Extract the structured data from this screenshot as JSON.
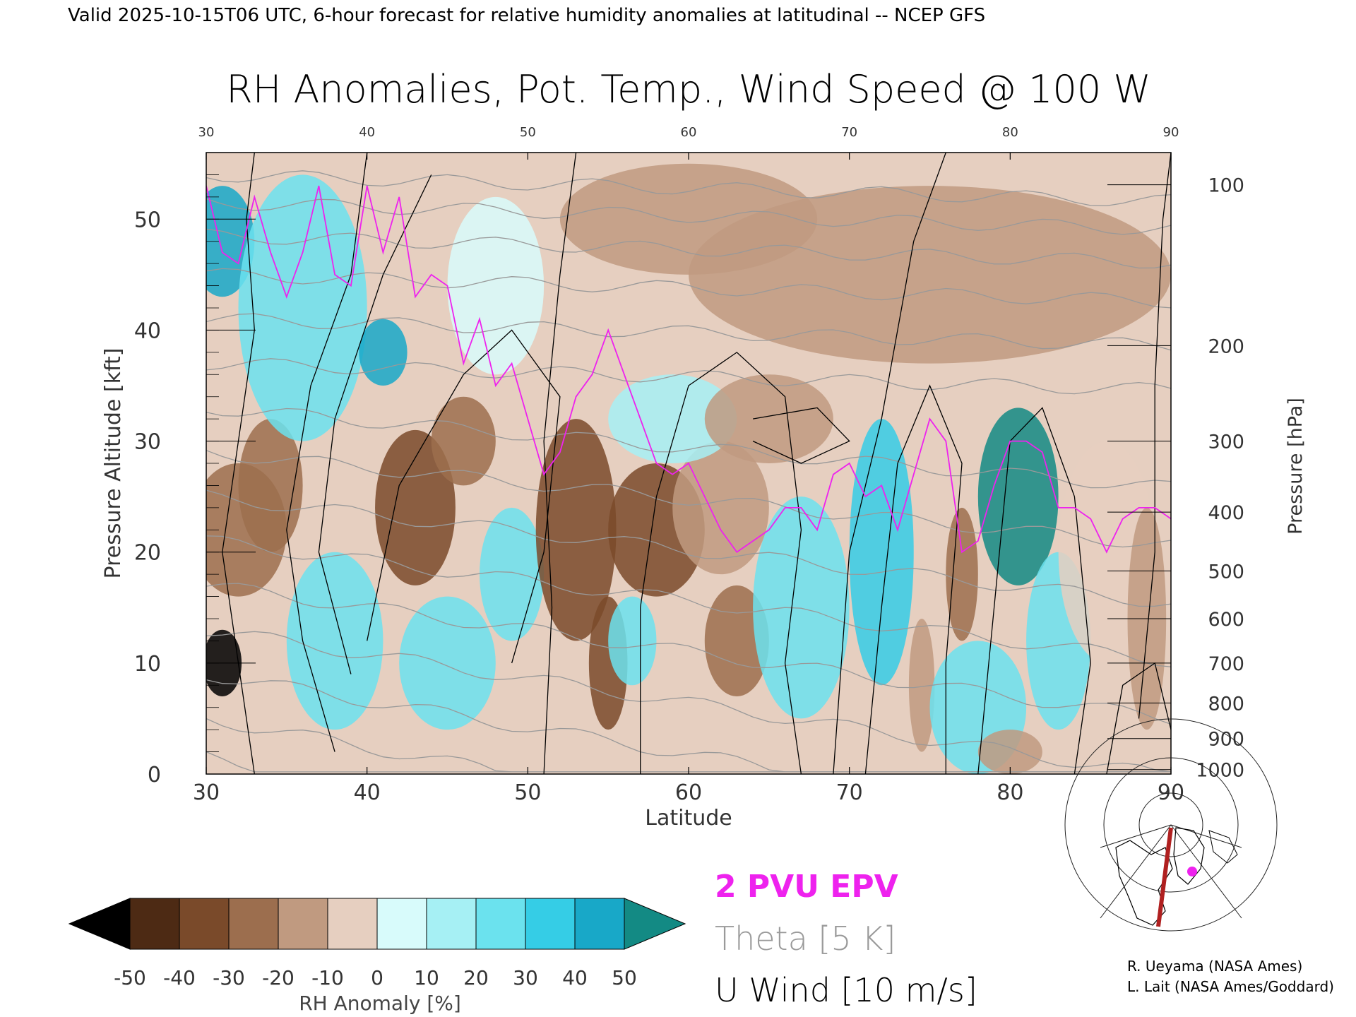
{
  "header": {
    "valid_line": "Valid 2025-10-15T06 UTC, 6-hour forecast for relative humidity anomalies at latitudinal -- NCEP GFS",
    "title": "RH Anomalies, Pot. Temp., Wind Speed @ 100 W"
  },
  "chart_data": {
    "type": "heatmap",
    "title": "RH Anomalies, Pot. Temp., Wind Speed @ 100 W",
    "xlabel": "Latitude",
    "ylabel": "Pressure Altitude [kft]",
    "y2label": "Pressure [hPa]",
    "xlim": [
      30,
      90
    ],
    "ylim": [
      0,
      56
    ],
    "x_ticks": [
      "30",
      "40",
      "50",
      "60",
      "70",
      "80",
      "90"
    ],
    "y_ticks": [
      "0",
      "10",
      "20",
      "30",
      "40",
      "50"
    ],
    "y2_ticks": [
      "100",
      "200",
      "300",
      "400",
      "500",
      "600",
      "700",
      "800",
      "900",
      "1000"
    ],
    "y2_tick_kft": [
      53.1,
      38.6,
      30.0,
      23.6,
      18.3,
      14.0,
      10.0,
      6.4,
      3.2,
      0.4
    ],
    "rh_blobs": [
      {
        "lat": 31,
        "kft": 10,
        "v": -55,
        "rx": 1.2,
        "ry": 3
      },
      {
        "lat": 32,
        "kft": 22,
        "v": -25,
        "rx": 3,
        "ry": 6
      },
      {
        "lat": 34,
        "kft": 26,
        "v": -30,
        "rx": 2,
        "ry": 6
      },
      {
        "lat": 31,
        "kft": 48,
        "v": 40,
        "rx": 2,
        "ry": 5
      },
      {
        "lat": 36,
        "kft": 42,
        "v": 20,
        "rx": 4,
        "ry": 12
      },
      {
        "lat": 38,
        "kft": 12,
        "v": 20,
        "rx": 3,
        "ry": 8
      },
      {
        "lat": 41,
        "kft": 38,
        "v": 45,
        "rx": 1.5,
        "ry": 3
      },
      {
        "lat": 43,
        "kft": 24,
        "v": -35,
        "rx": 2.5,
        "ry": 7
      },
      {
        "lat": 46,
        "kft": 30,
        "v": -25,
        "rx": 2,
        "ry": 4
      },
      {
        "lat": 45,
        "kft": 10,
        "v": 25,
        "rx": 3,
        "ry": 6
      },
      {
        "lat": 49,
        "kft": 18,
        "v": 20,
        "rx": 2,
        "ry": 6
      },
      {
        "lat": 48,
        "kft": 44,
        "v": 5,
        "rx": 3,
        "ry": 8
      },
      {
        "lat": 53,
        "kft": 22,
        "v": -35,
        "rx": 2.5,
        "ry": 10
      },
      {
        "lat": 55,
        "kft": 10,
        "v": -40,
        "rx": 1.2,
        "ry": 6
      },
      {
        "lat": 56.5,
        "kft": 12,
        "v": 20,
        "rx": 1.5,
        "ry": 4
      },
      {
        "lat": 58,
        "kft": 22,
        "v": -35,
        "rx": 3,
        "ry": 6
      },
      {
        "lat": 63,
        "kft": 12,
        "v": -30,
        "rx": 2,
        "ry": 5
      },
      {
        "lat": 62,
        "kft": 24,
        "v": -20,
        "rx": 3,
        "ry": 6
      },
      {
        "lat": 59,
        "kft": 32,
        "v": 15,
        "rx": 4,
        "ry": 4
      },
      {
        "lat": 67,
        "kft": 15,
        "v": 25,
        "rx": 3,
        "ry": 10
      },
      {
        "lat": 65,
        "kft": 32,
        "v": -15,
        "rx": 4,
        "ry": 4
      },
      {
        "lat": 72,
        "kft": 20,
        "v": 35,
        "rx": 2,
        "ry": 12
      },
      {
        "lat": 74.5,
        "kft": 8,
        "v": -20,
        "rx": 0.8,
        "ry": 6
      },
      {
        "lat": 77,
        "kft": 18,
        "v": -25,
        "rx": 1,
        "ry": 6
      },
      {
        "lat": 80.5,
        "kft": 25,
        "v": 55,
        "rx": 2.5,
        "ry": 8
      },
      {
        "lat": 78,
        "kft": 6,
        "v": 25,
        "rx": 3,
        "ry": 6
      },
      {
        "lat": 83,
        "kft": 12,
        "v": 20,
        "rx": 2,
        "ry": 8
      },
      {
        "lat": 86,
        "kft": 20,
        "v": -5,
        "rx": 3,
        "ry": 10
      },
      {
        "lat": 88.5,
        "kft": 14,
        "v": -15,
        "rx": 1.2,
        "ry": 10
      },
      {
        "lat": 75,
        "kft": 45,
        "v": -20,
        "rx": 15,
        "ry": 8
      },
      {
        "lat": 60,
        "kft": 50,
        "v": -12,
        "rx": 8,
        "ry": 5
      },
      {
        "lat": 80,
        "kft": 2,
        "v": -15,
        "rx": 2,
        "ry": 2
      }
    ],
    "theta_levels": [
      280,
      290,
      300,
      310,
      320,
      330,
      340,
      350,
      360,
      370,
      380,
      390,
      400,
      410,
      420
    ],
    "epv_2pvu": [
      [
        30,
        53
      ],
      [
        31,
        47
      ],
      [
        32,
        46
      ],
      [
        33,
        52
      ],
      [
        34,
        47
      ],
      [
        35,
        43
      ],
      [
        36,
        47
      ],
      [
        37,
        53
      ],
      [
        38,
        45
      ],
      [
        39,
        44
      ],
      [
        40,
        53
      ],
      [
        41,
        47
      ],
      [
        42,
        52
      ],
      [
        43,
        43
      ],
      [
        44,
        45
      ],
      [
        45,
        44
      ],
      [
        46,
        37
      ],
      [
        47,
        41
      ],
      [
        48,
        35
      ],
      [
        49,
        37
      ],
      [
        50,
        32
      ],
      [
        51,
        27
      ],
      [
        52,
        29
      ],
      [
        53,
        34
      ],
      [
        54,
        36
      ],
      [
        55,
        40
      ],
      [
        56,
        36
      ],
      [
        57,
        32
      ],
      [
        58,
        28
      ],
      [
        59,
        27
      ],
      [
        60,
        28
      ],
      [
        61,
        25
      ],
      [
        62,
        22
      ],
      [
        63,
        20
      ],
      [
        64,
        21
      ],
      [
        65,
        22
      ],
      [
        66,
        24
      ],
      [
        67,
        24
      ],
      [
        68,
        22
      ],
      [
        69,
        27
      ],
      [
        70,
        28
      ],
      [
        71,
        25
      ],
      [
        72,
        26
      ],
      [
        73,
        22
      ],
      [
        74,
        27
      ],
      [
        75,
        32
      ],
      [
        76,
        30
      ],
      [
        77,
        20
      ],
      [
        78,
        21
      ],
      [
        79,
        26
      ],
      [
        80,
        30
      ],
      [
        81,
        30
      ],
      [
        82,
        29
      ],
      [
        83,
        24
      ],
      [
        84,
        24
      ],
      [
        85,
        23
      ],
      [
        86,
        20
      ],
      [
        87,
        23
      ],
      [
        88,
        24
      ],
      [
        89,
        24
      ],
      [
        90,
        23
      ]
    ],
    "uwind_levels": [
      0,
      10,
      30
    ],
    "colorbar": {
      "label": "RH Anomaly [%]",
      "ticks": [
        "-50",
        "-40",
        "-30",
        "-20",
        "-10",
        "0",
        "10",
        "20",
        "30",
        "40",
        "50"
      ],
      "bins": [
        {
          "lo": -50,
          "hi": -40,
          "color": "#4d2a14"
        },
        {
          "lo": -40,
          "hi": -30,
          "color": "#7a4a2a"
        },
        {
          "lo": -30,
          "hi": -20,
          "color": "#9c6e4e"
        },
        {
          "lo": -20,
          "hi": -10,
          "color": "#c09a80"
        },
        {
          "lo": -10,
          "hi": 0,
          "color": "#e6cfc0"
        },
        {
          "lo": 0,
          "hi": 10,
          "color": "#d8fbfb"
        },
        {
          "lo": 10,
          "hi": 20,
          "color": "#a6f0f4"
        },
        {
          "lo": 20,
          "hi": 30,
          "color": "#6be2ee"
        },
        {
          "lo": 30,
          "hi": 40,
          "color": "#35cde6"
        },
        {
          "lo": 40,
          "hi": 50,
          "color": "#18a8c8"
        }
      ],
      "under_color": "#000000",
      "over_color": "#138a84"
    }
  },
  "legend": {
    "epv": "2 PVU EPV",
    "theta": "Theta [5 K]",
    "uwind": "U Wind [10 m/s]"
  },
  "colors": {
    "epv": "#ee22ee",
    "theta": "#999999",
    "uwind": "#000000",
    "track": "#b02020"
  },
  "credits": {
    "line1": "R. Ueyama (NASA Ames)",
    "line2": "L. Lait (NASA Ames/Goddard)"
  }
}
